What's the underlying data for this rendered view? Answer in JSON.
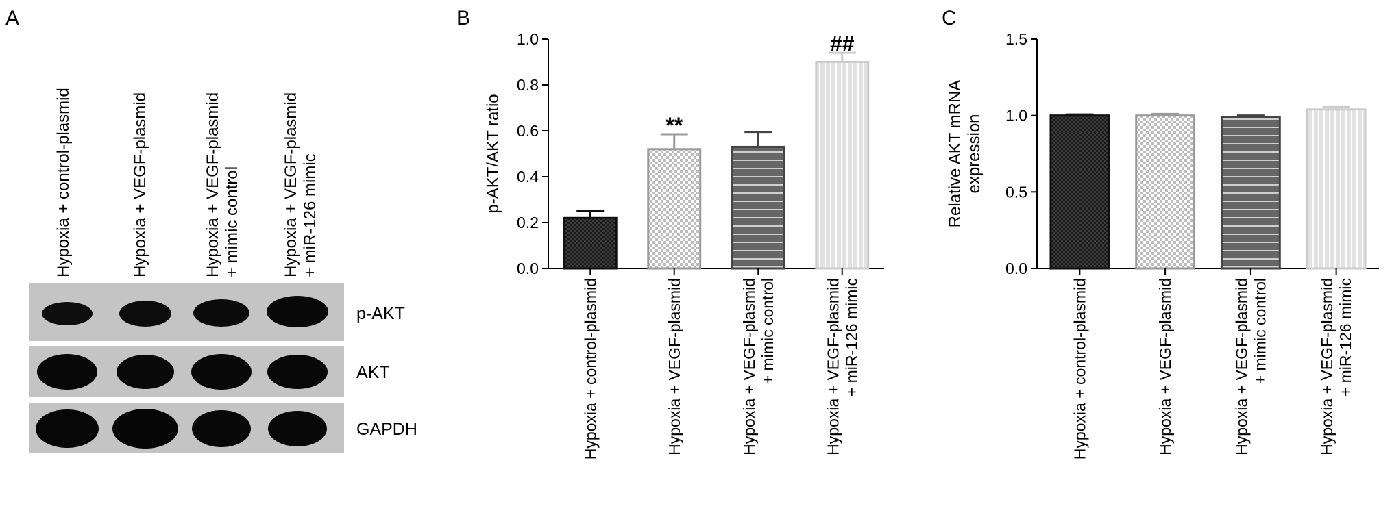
{
  "panels": {
    "a": {
      "letter": "A",
      "lanes": [
        "Hypoxia + control-plasmid",
        "Hypoxia + VEGF-plasmid",
        "Hypoxia + VEGF-plasmid",
        "+ mimic control",
        "Hypoxia + VEGF-plasmid",
        "+ miR-126 mimic"
      ],
      "bands": [
        "p-AKT",
        "AKT",
        "GAPDH"
      ]
    },
    "b": {
      "letter": "B"
    },
    "c": {
      "letter": "C"
    }
  },
  "chart_data": [
    {
      "type": "bar",
      "ylabel": "p-AKT/AKT ratio",
      "ylim": [
        0,
        1.0
      ],
      "yticks": [
        "0.0",
        "0.2",
        "0.4",
        "0.6",
        "0.8",
        "1.0"
      ],
      "categories": [
        [
          "Hypoxia + control-plasmid"
        ],
        [
          "Hypoxia + VEGF-plasmid"
        ],
        [
          "Hypoxia + VEGF-plasmid",
          "+ mimic control"
        ],
        [
          "Hypoxia + VEGF-plasmid",
          "+ miR-126 mimic"
        ]
      ],
      "values": [
        0.22,
        0.52,
        0.53,
        0.9
      ],
      "errors": [
        0.03,
        0.065,
        0.065,
        0.04
      ],
      "annotations": [
        "",
        "**",
        "",
        "##"
      ],
      "patterns": [
        "dark-check",
        "light-check",
        "dark-stripe",
        "light-stripe"
      ]
    },
    {
      "type": "bar",
      "ylabel": "Relative AKT mRNA expression",
      "ylabel_lines": [
        "Relative AKT mRNA",
        "expression"
      ],
      "ylim": [
        0,
        1.5
      ],
      "yticks": [
        "0.0",
        "0.5",
        "1.0",
        "1.5"
      ],
      "categories": [
        [
          "Hypoxia + control-plasmid"
        ],
        [
          "Hypoxia + VEGF-plasmid"
        ],
        [
          "Hypoxia + VEGF-plasmid",
          "+ mimic control"
        ],
        [
          "Hypoxia + VEGF-plasmid",
          "+ miR-126 mimic"
        ]
      ],
      "values": [
        1.0,
        1.0,
        0.99,
        1.04
      ],
      "errors": [
        0.007,
        0.01,
        0.01,
        0.015
      ],
      "annotations": [
        "",
        "",
        "",
        ""
      ],
      "patterns": [
        "dark-check",
        "light-check",
        "dark-stripe",
        "light-stripe"
      ]
    }
  ]
}
